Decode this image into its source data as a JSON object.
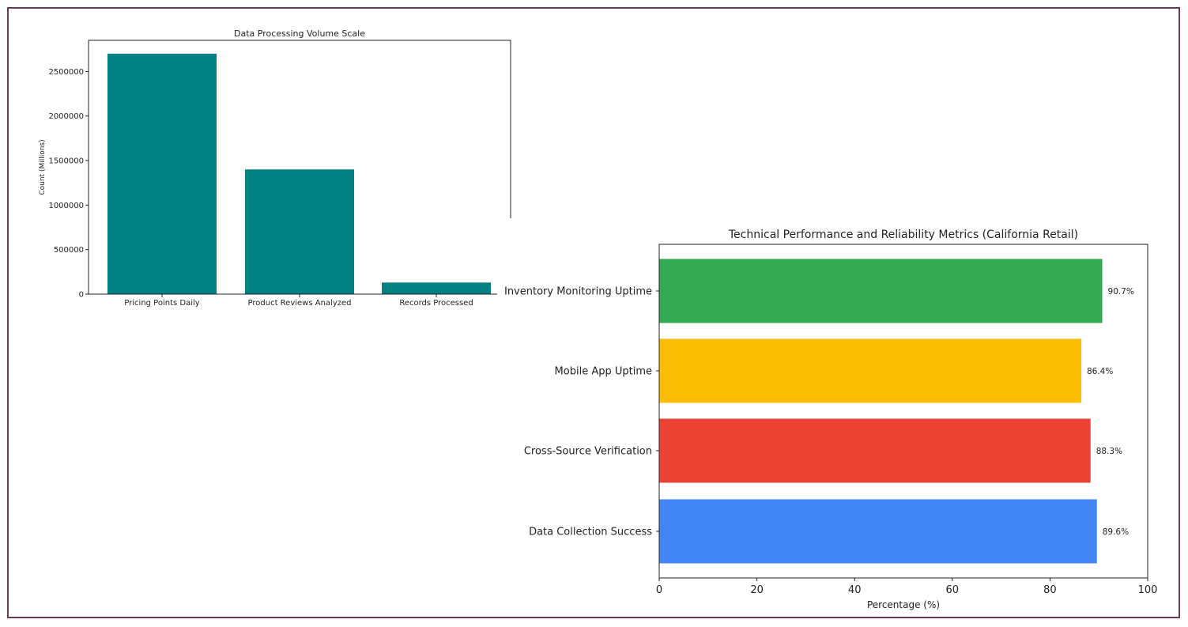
{
  "chart_data": [
    {
      "type": "bar",
      "title": "Data Processing Volume Scale",
      "xlabel": "",
      "ylabel": "Count (Millions)",
      "categories": [
        "Pricing Points Daily",
        "Product Reviews Analyzed",
        "Records Processed"
      ],
      "values": [
        2700000,
        1400000,
        130000
      ],
      "ylim": [
        0,
        2850000
      ],
      "yticks": [
        0,
        500000,
        1000000,
        1500000,
        2000000,
        2500000
      ],
      "ytick_labels": [
        "0",
        "500000",
        "1000000",
        "1500000",
        "2000000",
        "2500000"
      ],
      "color": "#008080",
      "grid": false
    },
    {
      "type": "bar",
      "orientation": "horizontal",
      "title": "Technical Performance and Reliability Metrics (California Retail)",
      "xlabel": "Percentage (%)",
      "ylabel": "",
      "categories": [
        "Inventory Monitoring Uptime",
        "Mobile App Uptime",
        "Cross-Source Verification",
        "Data Collection Success"
      ],
      "values": [
        90.7,
        86.4,
        88.3,
        89.6
      ],
      "value_labels": [
        "90.7%",
        "86.4%",
        "88.3%",
        "89.6%"
      ],
      "colors": [
        "#34a853",
        "#fbbc04",
        "#ea4335",
        "#4285f4"
      ],
      "xlim": [
        0,
        100
      ],
      "xticks": [
        0,
        20,
        40,
        60,
        80,
        100
      ],
      "xtick_labels": [
        "0",
        "20",
        "40",
        "60",
        "80",
        "100"
      ],
      "grid": false
    }
  ]
}
